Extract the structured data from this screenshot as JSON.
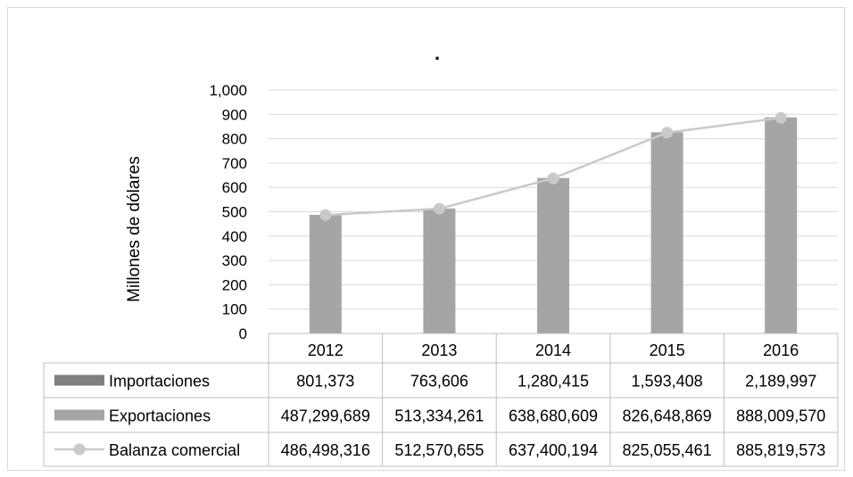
{
  "chart_data": {
    "type": "bar",
    "title": ".",
    "xlabel": "",
    "ylabel": "Millones de dólares",
    "categories": [
      "2012",
      "2013",
      "2014",
      "2015",
      "2016"
    ],
    "ylim": [
      0,
      1000
    ],
    "yticks": [
      0,
      100,
      200,
      300,
      400,
      500,
      600,
      700,
      800,
      900,
      1000
    ],
    "ytick_labels": [
      "0",
      "100",
      "200",
      "300",
      "400",
      "500",
      "600",
      "700",
      "800",
      "900",
      "1,000"
    ],
    "grid": true,
    "legend": "data-table",
    "series": [
      {
        "name": "Importaciones",
        "type": "bar",
        "color": "#7f7f7f",
        "values": [
          0.801373,
          0.763606,
          1.280415,
          1.593408,
          2.189997
        ],
        "labels": [
          "801,373",
          "763,606",
          "1,280,415",
          "1,593,408",
          "2,189,997"
        ]
      },
      {
        "name": "Exportaciones",
        "type": "bar",
        "color": "#a5a5a5",
        "values": [
          487.299689,
          513.334261,
          638.680609,
          826.648869,
          888.00957
        ],
        "labels": [
          "487,299,689",
          "513,334,261",
          "638,680,609",
          "826,648,869",
          "888,009,570"
        ]
      },
      {
        "name": "Balanza comercial",
        "type": "line",
        "color": "#c9c9c9",
        "values": [
          486.498316,
          512.570655,
          637.400194,
          825.055461,
          885.819573
        ],
        "labels": [
          "486,498,316",
          "512,570,655",
          "637,400,194",
          "825,055,461",
          "885,819,573"
        ]
      }
    ]
  }
}
